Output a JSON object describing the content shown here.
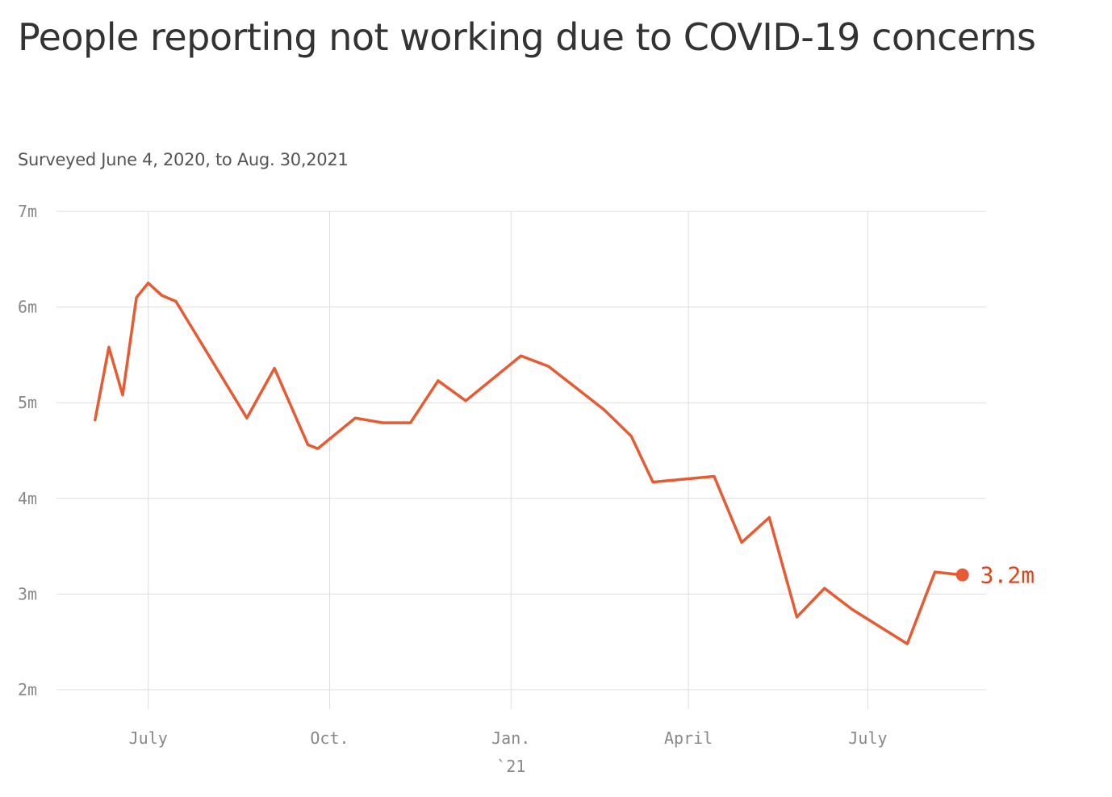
{
  "title": "People reporting not working due to COVID-19 concerns",
  "subtitle": "Surveyed June 4, 2020, to Aug. 30,2021",
  "colors": {
    "line": "#e85a32",
    "end_label": "#d9471f",
    "grid": "#dddddd",
    "tick_text": "#888888"
  },
  "chart_data": {
    "type": "line",
    "title": "People reporting not working due to COVID-19 concerns",
    "subtitle": "Surveyed June 4, 2020, to Aug. 30,2021",
    "xlabel": "",
    "ylabel": "",
    "ylim": [
      2,
      7
    ],
    "xlim": [
      "2020-05-31",
      "2021-08-30"
    ],
    "yticks": [
      {
        "value": 7,
        "label": "7m"
      },
      {
        "value": 6,
        "label": "6m"
      },
      {
        "value": 5,
        "label": "5m"
      },
      {
        "value": 4,
        "label": "4m"
      },
      {
        "value": 3,
        "label": "3m"
      },
      {
        "value": 2,
        "label": "2m"
      }
    ],
    "xticks": [
      {
        "date": "2020-07-01",
        "label": "July"
      },
      {
        "date": "2020-10-01",
        "label": "Oct."
      },
      {
        "date": "2021-01-01",
        "label": "Jan.",
        "sublabel": "`21"
      },
      {
        "date": "2021-04-01",
        "label": "April"
      },
      {
        "date": "2021-07-01",
        "label": "July"
      }
    ],
    "grid": true,
    "series": [
      {
        "points": [
          {
            "x": "2020-06-04",
            "y": 4.82
          },
          {
            "x": "2020-06-11",
            "y": 5.58
          },
          {
            "x": "2020-06-18",
            "y": 5.08
          },
          {
            "x": "2020-06-25",
            "y": 6.1
          },
          {
            "x": "2020-07-01",
            "y": 6.25
          },
          {
            "x": "2020-07-08",
            "y": 6.12
          },
          {
            "x": "2020-07-15",
            "y": 6.06
          },
          {
            "x": "2020-08-20",
            "y": 4.84
          },
          {
            "x": "2020-09-03",
            "y": 5.36
          },
          {
            "x": "2020-09-20",
            "y": 4.56
          },
          {
            "x": "2020-09-25",
            "y": 4.52
          },
          {
            "x": "2020-10-14",
            "y": 4.84
          },
          {
            "x": "2020-10-28",
            "y": 4.79
          },
          {
            "x": "2020-11-11",
            "y": 4.79
          },
          {
            "x": "2020-11-25",
            "y": 5.23
          },
          {
            "x": "2020-12-09",
            "y": 5.02
          },
          {
            "x": "2021-01-06",
            "y": 5.49
          },
          {
            "x": "2021-01-20",
            "y": 5.38
          },
          {
            "x": "2021-02-17",
            "y": 4.93
          },
          {
            "x": "2021-03-03",
            "y": 4.65
          },
          {
            "x": "2021-03-14",
            "y": 4.17
          },
          {
            "x": "2021-04-14",
            "y": 4.23
          },
          {
            "x": "2021-04-28",
            "y": 3.54
          },
          {
            "x": "2021-05-12",
            "y": 3.8
          },
          {
            "x": "2021-05-26",
            "y": 2.76
          },
          {
            "x": "2021-06-09",
            "y": 3.06
          },
          {
            "x": "2021-06-23",
            "y": 2.84
          },
          {
            "x": "2021-07-21",
            "y": 2.48
          },
          {
            "x": "2021-08-04",
            "y": 3.23
          },
          {
            "x": "2021-08-18",
            "y": 3.2
          }
        ]
      }
    ],
    "end_label": "3.2m"
  }
}
